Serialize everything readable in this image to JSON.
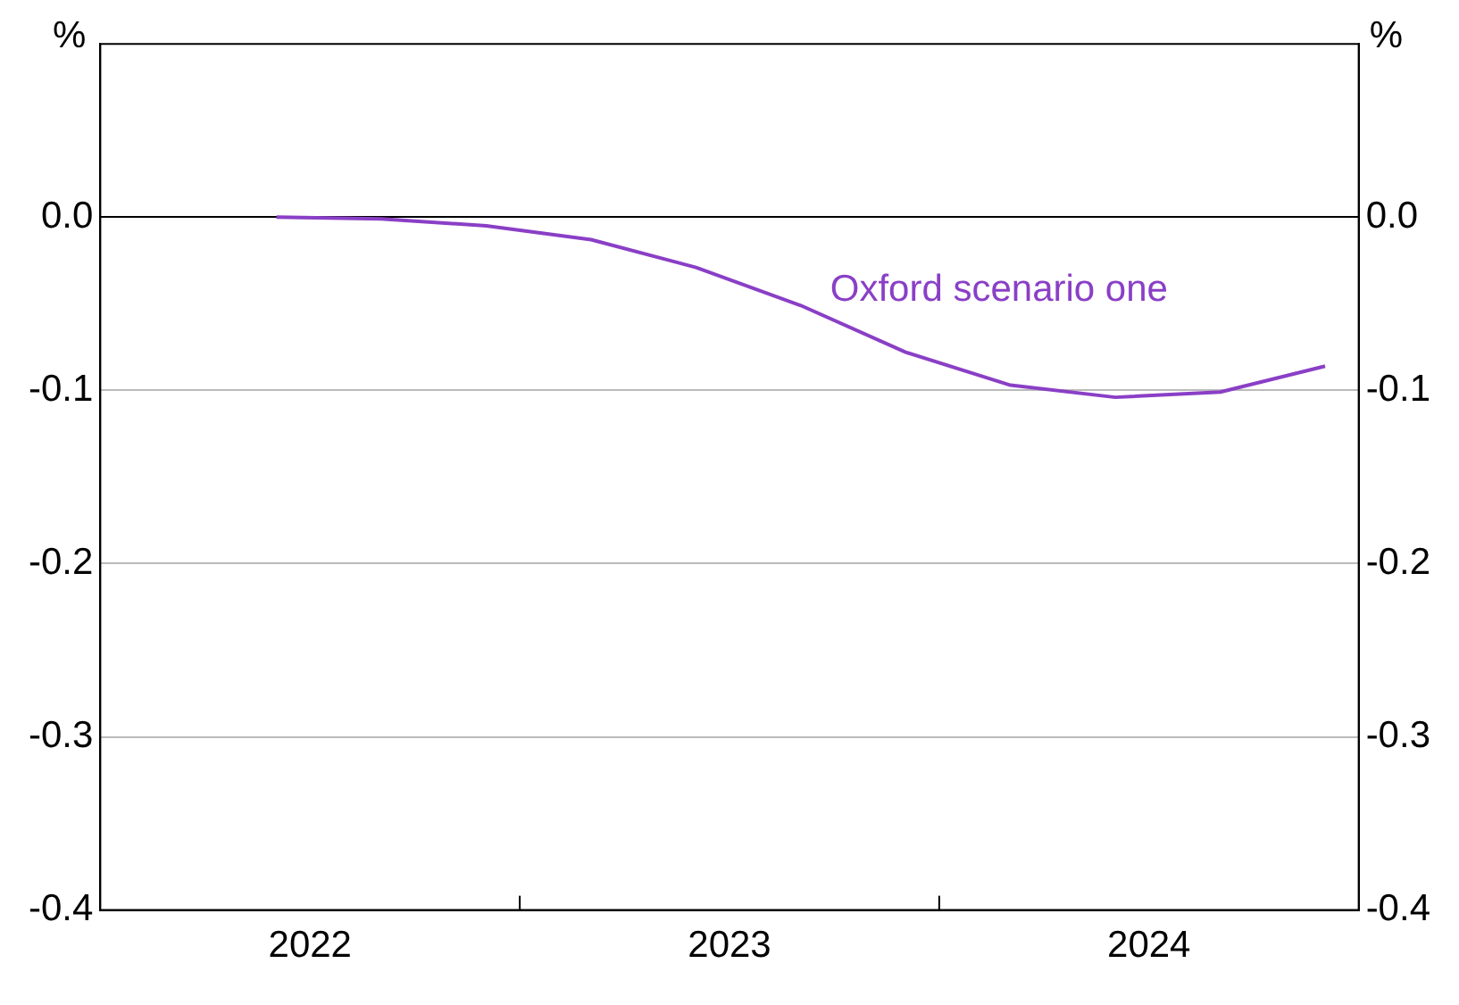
{
  "chart_data": {
    "type": "line",
    "ylabel": "%",
    "y2label": "%",
    "x": [
      2022.42,
      2022.67,
      2022.92,
      2023.17,
      2023.42,
      2023.67,
      2023.92,
      2024.17,
      2024.42,
      2024.67,
      2024.92
    ],
    "series": [
      {
        "name": "Oxford scenario one",
        "color": "#8a3fc6",
        "values": [
          0,
          -0.001,
          -0.005,
          -0.013,
          -0.029,
          -0.051,
          -0.078,
          -0.097,
          -0.104,
          -0.101,
          -0.086
        ]
      }
    ],
    "xlim": [
      2022,
      2025
    ],
    "xticks": [
      {
        "value": 2022.5,
        "label": "2022"
      },
      {
        "value": 2023,
        "label": null
      },
      {
        "value": 2023.5,
        "label": "2023"
      },
      {
        "value": 2024,
        "label": null
      },
      {
        "value": 2024.5,
        "label": "2024"
      }
    ],
    "ylim": [
      -0.4,
      0.1
    ],
    "yticks": [
      -0.4,
      -0.3,
      -0.2,
      -0.1,
      {
        "value": 0,
        "label": "0.0"
      }
    ],
    "y2lim": [
      -0.4,
      0.1
    ],
    "y2ticks": [
      -0.4,
      -0.3,
      -0.2,
      -0.1,
      {
        "value": 0,
        "label": "0.0"
      }
    ],
    "grid": "y",
    "legend": false,
    "marker": "none",
    "line_style": "solid"
  }
}
